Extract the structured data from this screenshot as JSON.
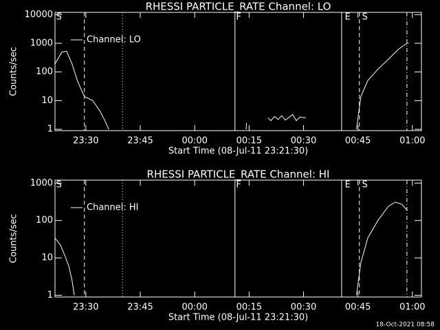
{
  "chart_data": [
    {
      "type": "line",
      "title": "RHESSI PARTICLE_RATE Channel: LO",
      "x_label": "Start Time (08-Jul-11 23:21:30)",
      "y_label": "Counts/sec",
      "log_y": true,
      "ylim": [
        0.9,
        12000
      ],
      "yticks": [
        1,
        10,
        100,
        1000,
        10000
      ],
      "xlim": [
        0,
        101
      ],
      "xticks": [
        {
          "value": 8.5,
          "label": "23:30"
        },
        {
          "value": 23.5,
          "label": "23:45"
        },
        {
          "value": 38.5,
          "label": "00:00"
        },
        {
          "value": 53.5,
          "label": "00:15"
        },
        {
          "value": 68.5,
          "label": "00:30"
        },
        {
          "value": 83.5,
          "label": "00:45"
        },
        {
          "value": 98.5,
          "label": "01:00"
        }
      ],
      "x": [
        0,
        1.9,
        3.2,
        4.7,
        6.3,
        8.1,
        10.4,
        12.3,
        13.6,
        14.8,
        30,
        52.7,
        52.8,
        55,
        58.7,
        59.5,
        60.5,
        61.5,
        62.5,
        63.5,
        64.5,
        65.5,
        66.5,
        67.5,
        69.1,
        75,
        83.1,
        84.3,
        86.2,
        89,
        91.9,
        94.7,
        97,
        97.5
      ],
      "series": [
        {
          "name": "Channel: LO",
          "color": "#ffffff",
          "values": [
            190,
            500,
            530,
            190,
            45,
            14,
            10,
            4.5,
            2.2,
            1,
            null,
            1,
            1.7,
            null,
            2.5,
            2.0,
            2.8,
            2.2,
            3.0,
            2.1,
            2.6,
            3.3,
            2.0,
            2.7,
            2.5,
            null,
            1,
            14,
            50,
            125,
            280,
            630,
            1000,
            1000
          ]
        }
      ],
      "markers": [
        {
          "x": 8.1,
          "style": "dashed"
        },
        {
          "x": 18.6,
          "style": "dotted"
        },
        {
          "x": 49.6,
          "style": "solid"
        },
        {
          "x": 79.0,
          "style": "solid"
        },
        {
          "x": 83.9,
          "style": "dashed"
        },
        {
          "x": 97.0,
          "style": "dashdot"
        }
      ],
      "annotations": [
        {
          "x": 0.3,
          "text": "S"
        },
        {
          "x": 49.9,
          "text": "F"
        },
        {
          "x": 79.9,
          "text": "E"
        },
        {
          "x": 84.6,
          "text": "S"
        }
      ]
    },
    {
      "type": "line",
      "title": "RHESSI PARTICLE_RATE Channel: HI",
      "x_label": "Start Time (08-Jul-11 23:21:30)",
      "y_label": "Counts/sec",
      "log_y": true,
      "ylim": [
        0.9,
        1200
      ],
      "yticks": [
        1,
        10,
        100,
        1000
      ],
      "xlim": [
        0,
        101
      ],
      "xticks": [
        {
          "value": 8.5,
          "label": "23:30"
        },
        {
          "value": 23.5,
          "label": "23:45"
        },
        {
          "value": 38.5,
          "label": "00:00"
        },
        {
          "value": 53.5,
          "label": "00:15"
        },
        {
          "value": 68.5,
          "label": "00:30"
        },
        {
          "value": 83.5,
          "label": "00:45"
        },
        {
          "value": 98.5,
          "label": "01:00"
        }
      ],
      "x": [
        0,
        1.5,
        2.8,
        3.8,
        4.7,
        5.3,
        40,
        83.1,
        84.3,
        86.2,
        89,
        91.9,
        93.8,
        95.6,
        97
      ],
      "series": [
        {
          "name": "Channel: HI",
          "color": "#ffffff",
          "values": [
            34,
            22,
            11,
            6,
            2.5,
            1,
            null,
            1,
            7.4,
            34,
            100,
            240,
            310,
            270,
            190
          ]
        }
      ],
      "markers": [
        {
          "x": 8.1,
          "style": "dashed"
        },
        {
          "x": 18.6,
          "style": "dotted"
        },
        {
          "x": 49.6,
          "style": "solid"
        },
        {
          "x": 79.0,
          "style": "solid"
        },
        {
          "x": 83.9,
          "style": "dashed"
        },
        {
          "x": 97.0,
          "style": "dashdot"
        }
      ],
      "annotations": [
        {
          "x": 0.3,
          "text": "S"
        },
        {
          "x": 49.9,
          "text": "F"
        },
        {
          "x": 79.9,
          "text": "E"
        },
        {
          "x": 84.6,
          "text": "S"
        }
      ]
    }
  ],
  "footer": "18-Oct-2021 08:58"
}
